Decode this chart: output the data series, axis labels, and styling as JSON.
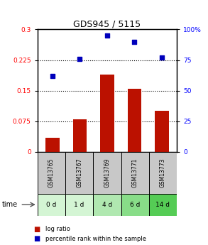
{
  "title": "GDS945 / 5115",
  "categories": [
    "GSM13765",
    "GSM13767",
    "GSM13769",
    "GSM13771",
    "GSM13773"
  ],
  "time_labels": [
    "0 d",
    "1 d",
    "4 d",
    "6 d",
    "14 d"
  ],
  "log_ratio": [
    0.035,
    0.08,
    0.19,
    0.155,
    0.1
  ],
  "percentile_rank": [
    62,
    76,
    95,
    90,
    77
  ],
  "bar_color": "#bb1100",
  "dot_color": "#0000bb",
  "left_ylim": [
    0,
    0.3
  ],
  "right_ylim": [
    0,
    100
  ],
  "left_yticks": [
    0,
    0.075,
    0.15,
    0.225,
    0.3
  ],
  "right_yticks": [
    0,
    25,
    50,
    75,
    100
  ],
  "left_ytick_labels": [
    "0",
    "0.075",
    "0.15",
    "0.225",
    "0.3"
  ],
  "right_ytick_labels": [
    "0",
    "25",
    "50",
    "75",
    "100%"
  ],
  "hlines": [
    0.075,
    0.15,
    0.225
  ],
  "cell_bg_gray": "#c8c8c8",
  "time_row_colors": [
    "#d4f5d4",
    "#d4f5d4",
    "#b0e8b0",
    "#88dd88",
    "#55cc55"
  ]
}
